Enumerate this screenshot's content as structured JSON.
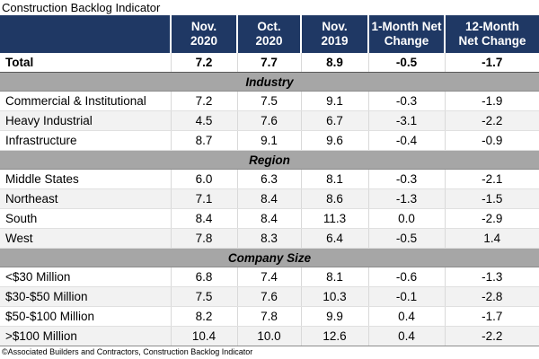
{
  "title": "Construction Backlog Indicator",
  "footer": "©Associated Builders and Contractors, Construction Backlog Indicator",
  "colors": {
    "header_bg": "#1F3864",
    "header_text": "#FFFFFF",
    "section_band_bg": "#A6A6A6",
    "alt_row_bg": "#F2F2F2",
    "grid_line": "#E0E0E0"
  },
  "chart_data": {
    "type": "table",
    "title": "Construction Backlog Indicator",
    "columns": [
      "Nov.\n2020",
      "Oct.\n2020",
      "Nov.\n2019",
      "1-Month Net\nChange",
      "12-Month\nNet Change"
    ],
    "total_row": {
      "label": "Total",
      "values": [
        "7.2",
        "7.7",
        "8.9",
        "-0.5",
        "-1.7"
      ]
    },
    "sections": [
      {
        "name": "Industry",
        "rows": [
          {
            "label": "Commercial & Institutional",
            "values": [
              "7.2",
              "7.5",
              "9.1",
              "-0.3",
              "-1.9"
            ]
          },
          {
            "label": "Heavy Industrial",
            "values": [
              "4.5",
              "7.6",
              "6.7",
              "-3.1",
              "-2.2"
            ]
          },
          {
            "label": "Infrastructure",
            "values": [
              "8.7",
              "9.1",
              "9.6",
              "-0.4",
              "-0.9"
            ]
          }
        ]
      },
      {
        "name": "Region",
        "rows": [
          {
            "label": "Middle States",
            "values": [
              "6.0",
              "6.3",
              "8.1",
              "-0.3",
              "-2.1"
            ]
          },
          {
            "label": "Northeast",
            "values": [
              "7.1",
              "8.4",
              "8.6",
              "-1.3",
              "-1.5"
            ]
          },
          {
            "label": "South",
            "values": [
              "8.4",
              "8.4",
              "11.3",
              "0.0",
              "-2.9"
            ]
          },
          {
            "label": "West",
            "values": [
              "7.8",
              "8.3",
              "6.4",
              "-0.5",
              "1.4"
            ]
          }
        ]
      },
      {
        "name": "Company Size",
        "rows": [
          {
            "label": "<$30 Million",
            "values": [
              "6.8",
              "7.4",
              "8.1",
              "-0.6",
              "-1.3"
            ]
          },
          {
            "label": "$30-$50 Million",
            "values": [
              "7.5",
              "7.6",
              "10.3",
              "-0.1",
              "-2.8"
            ]
          },
          {
            "label": "$50-$100 Million",
            "values": [
              "8.2",
              "7.8",
              "9.9",
              "0.4",
              "-1.7"
            ]
          },
          {
            "label": ">$100 Million",
            "values": [
              "10.4",
              "10.0",
              "12.6",
              "0.4",
              "-2.2"
            ]
          }
        ]
      }
    ]
  }
}
